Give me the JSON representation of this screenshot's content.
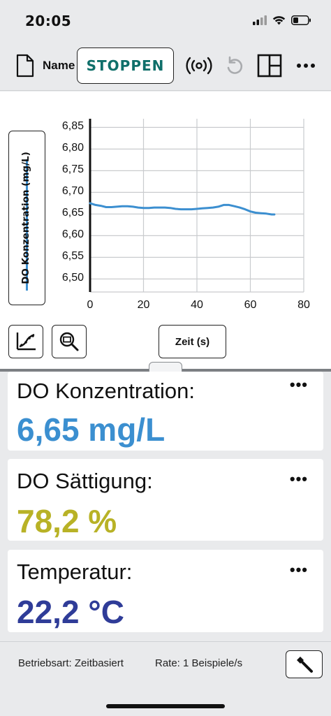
{
  "status_bar": {
    "time": "20:05"
  },
  "toolbar": {
    "name_label": "Name",
    "stop_button": "STOPPEN"
  },
  "graph": {
    "y_axis_label": "DO Konzentration (mg/L)",
    "x_axis_label": "Zeit (s)",
    "line_color": "#3c8fd0"
  },
  "chart_data": {
    "type": "line",
    "xlabel": "Zeit (s)",
    "ylabel": "DO Konzentration (mg/L)",
    "xlim": [
      0,
      80
    ],
    "ylim": [
      6.47,
      6.87
    ],
    "x_ticks": [
      "0",
      "20",
      "40",
      "60",
      "80"
    ],
    "y_ticks": [
      "6,85",
      "6,80",
      "6,75",
      "6,70",
      "6,65",
      "6,60",
      "6,55",
      "6,50"
    ],
    "x_tick_values": [
      0,
      20,
      40,
      60,
      80
    ],
    "y_tick_values": [
      6.85,
      6.8,
      6.75,
      6.7,
      6.65,
      6.6,
      6.55,
      6.5
    ],
    "grid": true,
    "series": [
      {
        "x": [
          0,
          2,
          4,
          6,
          8,
          10,
          12,
          14,
          16,
          18,
          20,
          22,
          24,
          26,
          28,
          30,
          32,
          34,
          36,
          38,
          40,
          42,
          44,
          46,
          48,
          50,
          52,
          54,
          56,
          58,
          60,
          62,
          64,
          66,
          68,
          69
        ],
        "values": [
          6.675,
          6.671,
          6.669,
          6.666,
          6.666,
          6.667,
          6.668,
          6.668,
          6.667,
          6.665,
          6.664,
          6.664,
          6.665,
          6.665,
          6.665,
          6.664,
          6.662,
          6.661,
          6.661,
          6.661,
          6.662,
          6.663,
          6.664,
          6.665,
          6.667,
          6.671,
          6.671,
          6.668,
          6.665,
          6.661,
          6.656,
          6.653,
          6.652,
          6.651,
          6.649,
          6.649
        ]
      }
    ]
  },
  "cards": [
    {
      "title": "DO Konzentration:",
      "value": "6,65 mg/L",
      "color": "#3b8fd0"
    },
    {
      "title": "DO Sättigung:",
      "value": "78,2 %",
      "color": "#b8b226"
    },
    {
      "title": "Temperatur:",
      "value": "22,2 °C",
      "color": "#2f3c98"
    }
  ],
  "footer": {
    "mode": "Betriebsart: Zeitbasiert",
    "rate": "Rate: 1 Beispiele/s"
  },
  "icons": [
    "document-icon",
    "broadcast-icon",
    "undo-icon",
    "layout-icon",
    "more-icon",
    "curve-fit-icon",
    "zoom-icon",
    "wrench-icon"
  ]
}
